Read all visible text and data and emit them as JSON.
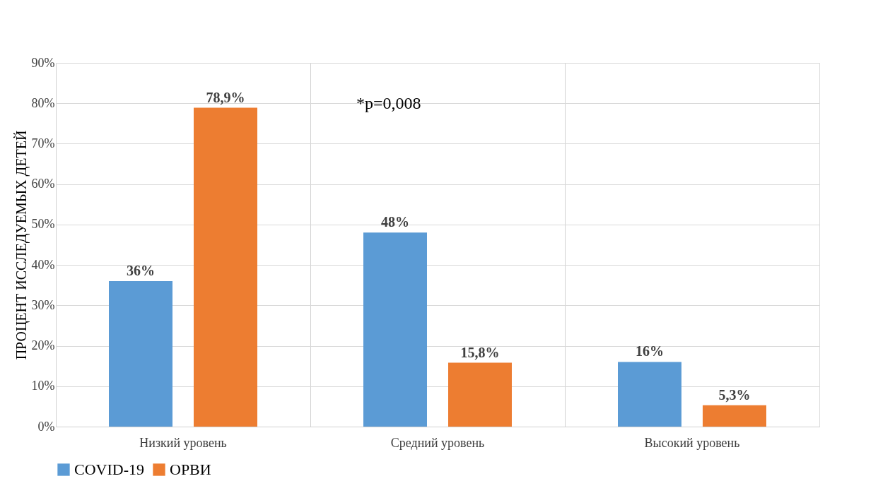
{
  "chart_data": {
    "type": "bar",
    "ylabel": "ПРОЦЕНТ ИССЛЕДУЕМЫХ ДЕТЕЙ",
    "categories": [
      "Низкий уровень",
      "Средний уровень",
      "Высокий уровень"
    ],
    "series": [
      {
        "name": "COVID-19",
        "color": "#5b9bd5",
        "values": [
          36,
          48,
          16
        ],
        "value_labels": [
          "36%",
          "48%",
          "16%"
        ]
      },
      {
        "name": "ОРВИ",
        "color": "#ed7d31",
        "values": [
          78.9,
          15.8,
          5.3
        ],
        "value_labels": [
          "78,9%",
          "15,8%",
          "5,3%"
        ]
      }
    ],
    "ylim": [
      0,
      90
    ],
    "yticks": [
      {
        "value": 0,
        "label": "0%"
      },
      {
        "value": 10,
        "label": "10%"
      },
      {
        "value": 20,
        "label": "20%"
      },
      {
        "value": 30,
        "label": "30%"
      },
      {
        "value": 40,
        "label": "40%"
      },
      {
        "value": 50,
        "label": "50%"
      },
      {
        "value": 60,
        "label": "60%"
      },
      {
        "value": 70,
        "label": "70%"
      },
      {
        "value": 80,
        "label": "80%"
      },
      {
        "value": 90,
        "label": "90%"
      }
    ],
    "annotations": [
      "*p=0,008"
    ],
    "grid": true,
    "legend": "bottom"
  }
}
